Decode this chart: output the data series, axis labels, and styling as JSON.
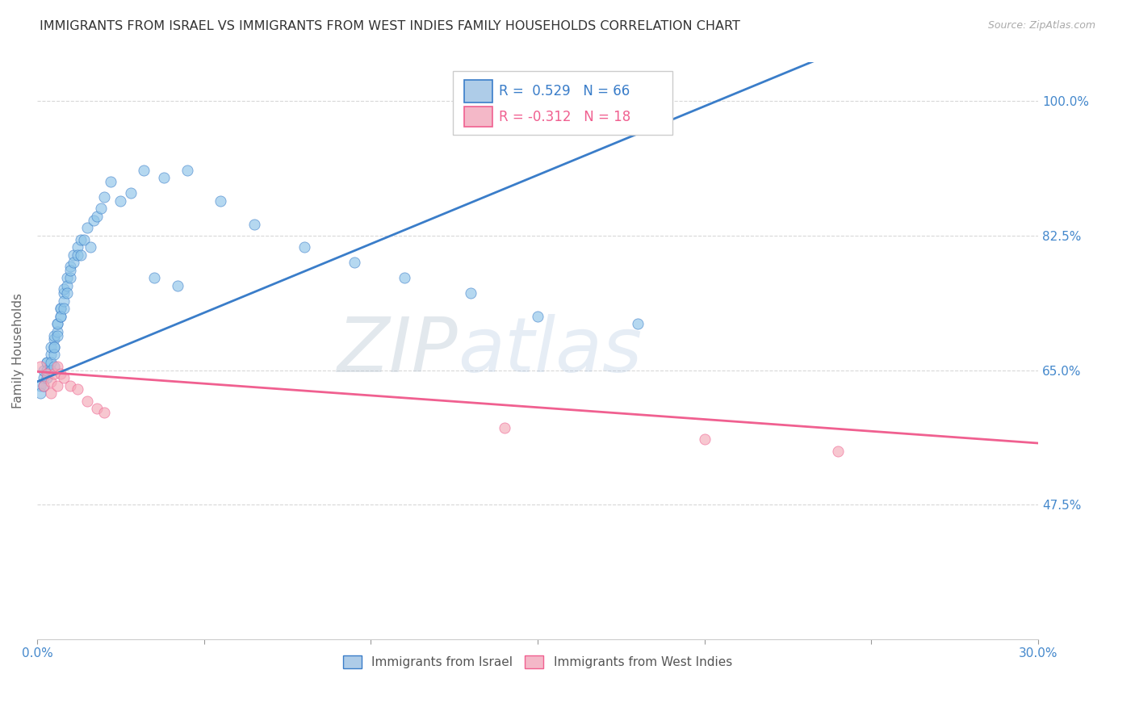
{
  "title": "IMMIGRANTS FROM ISRAEL VS IMMIGRANTS FROM WEST INDIES FAMILY HOUSEHOLDS CORRELATION CHART",
  "source": "Source: ZipAtlas.com",
  "ylabel": "Family Households",
  "xlim": [
    0.0,
    0.3
  ],
  "ylim": [
    0.3,
    1.05
  ],
  "ytick_labels": [
    "100.0%",
    "82.5%",
    "65.0%",
    "47.5%"
  ],
  "ytick_values": [
    1.0,
    0.825,
    0.65,
    0.475
  ],
  "xtick_values": [
    0.0,
    0.05,
    0.1,
    0.15,
    0.2,
    0.25,
    0.3
  ],
  "r_israel": 0.529,
  "n_israel": 66,
  "r_westindies": -0.312,
  "n_westindies": 18,
  "israel_color": "#8ec4e8",
  "westindies_color": "#f4a9b8",
  "israel_line_color": "#3a7dc9",
  "westindies_line_color": "#f06090",
  "legend_box_israel": "#aecce8",
  "legend_box_westindies": "#f4b8c8",
  "israel_x": [
    0.001,
    0.001,
    0.002,
    0.002,
    0.002,
    0.003,
    0.003,
    0.003,
    0.003,
    0.004,
    0.004,
    0.004,
    0.004,
    0.005,
    0.005,
    0.005,
    0.005,
    0.005,
    0.005,
    0.006,
    0.006,
    0.006,
    0.006,
    0.007,
    0.007,
    0.007,
    0.007,
    0.008,
    0.008,
    0.008,
    0.008,
    0.009,
    0.009,
    0.009,
    0.01,
    0.01,
    0.01,
    0.011,
    0.011,
    0.012,
    0.012,
    0.013,
    0.013,
    0.014,
    0.015,
    0.016,
    0.017,
    0.018,
    0.019,
    0.02,
    0.022,
    0.025,
    0.028,
    0.032,
    0.038,
    0.045,
    0.055,
    0.065,
    0.08,
    0.095,
    0.11,
    0.13,
    0.15,
    0.18,
    0.035,
    0.042
  ],
  "israel_y": [
    0.63,
    0.62,
    0.64,
    0.65,
    0.63,
    0.66,
    0.66,
    0.64,
    0.65,
    0.67,
    0.66,
    0.68,
    0.65,
    0.69,
    0.68,
    0.67,
    0.695,
    0.68,
    0.655,
    0.71,
    0.7,
    0.71,
    0.695,
    0.73,
    0.72,
    0.73,
    0.72,
    0.75,
    0.74,
    0.73,
    0.755,
    0.77,
    0.76,
    0.75,
    0.785,
    0.77,
    0.78,
    0.8,
    0.79,
    0.81,
    0.8,
    0.82,
    0.8,
    0.82,
    0.835,
    0.81,
    0.845,
    0.85,
    0.86,
    0.875,
    0.895,
    0.87,
    0.88,
    0.91,
    0.9,
    0.91,
    0.87,
    0.84,
    0.81,
    0.79,
    0.77,
    0.75,
    0.72,
    0.71,
    0.77,
    0.76
  ],
  "westindies_x": [
    0.001,
    0.002,
    0.003,
    0.004,
    0.004,
    0.005,
    0.006,
    0.006,
    0.007,
    0.008,
    0.01,
    0.012,
    0.015,
    0.018,
    0.02,
    0.14,
    0.2,
    0.24
  ],
  "westindies_y": [
    0.655,
    0.63,
    0.645,
    0.635,
    0.62,
    0.645,
    0.655,
    0.63,
    0.645,
    0.64,
    0.63,
    0.625,
    0.61,
    0.6,
    0.595,
    0.575,
    0.56,
    0.545
  ],
  "background_color": "#ffffff",
  "grid_color": "#d8d8d8",
  "watermark_zip": "ZIP",
  "watermark_atlas": "atlas"
}
